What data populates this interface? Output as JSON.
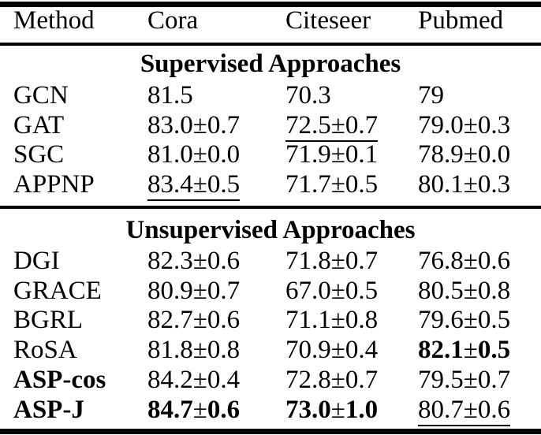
{
  "colors": {
    "text": "#000000",
    "background": "#ffffff",
    "rule": "#000000"
  },
  "table": {
    "columns": [
      "Method",
      "Cora",
      "Citeseer",
      "Pubmed"
    ],
    "sections": [
      {
        "title": "Supervised Approaches",
        "rows": [
          {
            "method": "GCN",
            "method_bold": false,
            "cells": [
              {
                "text": "81.5"
              },
              {
                "text": "70.3"
              },
              {
                "text": "79"
              }
            ]
          },
          {
            "method": "GAT",
            "method_bold": false,
            "cells": [
              {
                "text": "83.0±0.7"
              },
              {
                "text": "72.5±0.7",
                "underline": true
              },
              {
                "text": "79.0±0.3"
              }
            ]
          },
          {
            "method": "SGC",
            "method_bold": false,
            "cells": [
              {
                "text": "81.0±0.0"
              },
              {
                "text": "71.9±0.1"
              },
              {
                "text": "78.9±0.0"
              }
            ]
          },
          {
            "method": "APPNP",
            "method_bold": false,
            "cells": [
              {
                "text": "83.4±0.5",
                "underline": true
              },
              {
                "text": "71.7±0.5"
              },
              {
                "text": "80.1±0.3"
              }
            ]
          }
        ]
      },
      {
        "title": "Unsupervised Approaches",
        "rows": [
          {
            "method": "DGI",
            "method_bold": false,
            "cells": [
              {
                "text": "82.3±0.6"
              },
              {
                "text": "71.8±0.7"
              },
              {
                "text": "76.8±0.6"
              }
            ]
          },
          {
            "method": "GRACE",
            "method_bold": false,
            "cells": [
              {
                "text": "80.9±0.7"
              },
              {
                "text": "67.0±0.5"
              },
              {
                "text": "80.5±0.8"
              }
            ]
          },
          {
            "method": "BGRL",
            "method_bold": false,
            "cells": [
              {
                "text": "82.7±0.6"
              },
              {
                "text": "71.1±0.8"
              },
              {
                "text": "79.6±0.5"
              }
            ]
          },
          {
            "method": "RoSA",
            "method_bold": false,
            "cells": [
              {
                "text": "81.8±0.8"
              },
              {
                "text": "70.9±0.4"
              },
              {
                "text": "82.1±0.5",
                "bold": true
              }
            ]
          },
          {
            "method": "ASP-cos",
            "method_bold": true,
            "cells": [
              {
                "text": "84.2±0.4"
              },
              {
                "text": "72.8±0.7"
              },
              {
                "text": "79.5±0.7"
              }
            ]
          },
          {
            "method": "ASP-J",
            "method_bold": true,
            "cells": [
              {
                "text": "84.7±0.6",
                "bold": true
              },
              {
                "text": "73.0±1.0",
                "bold": true
              },
              {
                "text": "80.7±0.6",
                "underline": true
              }
            ]
          }
        ]
      }
    ]
  }
}
